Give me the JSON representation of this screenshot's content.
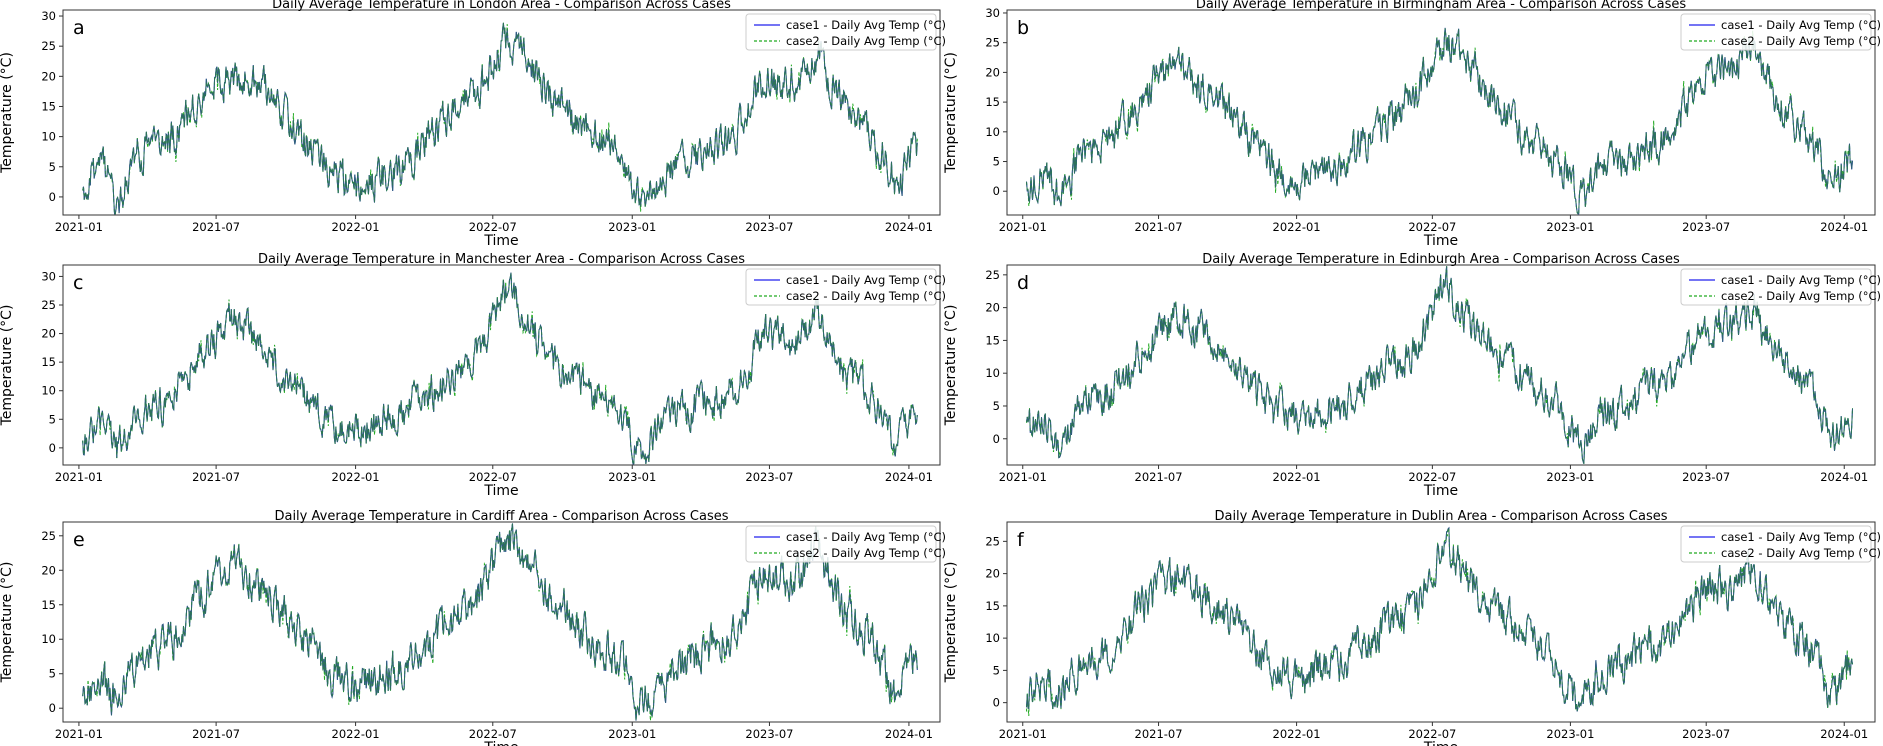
{
  "figure": {
    "colors": {
      "case1": "#2222ee",
      "case2": "#22aa22",
      "overlap": "#2f6b5e",
      "axes": "#333333"
    },
    "legend_case1": "case1 - Daily Avg Temp (°C)",
    "legend_case2": "case2 - Daily Avg Temp (°C)",
    "xlabel": "Time",
    "ylabel": "Temperature (°C)"
  },
  "chart_data": [
    {
      "type": "line",
      "letter": "a",
      "city": "London",
      "title": "Daily Average Temperature in London Area - Comparison Across Cases",
      "xlabel": "Time",
      "ylabel": "Temperature (°C)",
      "xticks": [
        "2021-01",
        "2021-07",
        "2022-01",
        "2022-07",
        "2023-01",
        "2023-07",
        "2024-01"
      ],
      "yticks": [
        0,
        5,
        10,
        15,
        20,
        25,
        30
      ],
      "ylim": [
        -3,
        31
      ],
      "xlim_days": [
        -26,
        1131
      ],
      "date_range": [
        "2021-01-06",
        "2024-01-13"
      ],
      "series": [
        {
          "name": "case1 - Daily Avg Temp (°C)"
        },
        {
          "name": "case2 - Daily Avg Temp (°C)"
        }
      ],
      "anchors": [
        [
          0,
          1
        ],
        [
          25,
          6
        ],
        [
          45,
          -2
        ],
        [
          70,
          7
        ],
        [
          110,
          9
        ],
        [
          170,
          19
        ],
        [
          210,
          20
        ],
        [
          245,
          17
        ],
        [
          280,
          11
        ],
        [
          330,
          4
        ],
        [
          365,
          2
        ],
        [
          420,
          5
        ],
        [
          470,
          12
        ],
        [
          520,
          17
        ],
        [
          560,
          26
        ],
        [
          585,
          23
        ],
        [
          620,
          16
        ],
        [
          660,
          12
        ],
        [
          710,
          7
        ],
        [
          735,
          -1
        ],
        [
          760,
          3
        ],
        [
          800,
          6
        ],
        [
          860,
          10
        ],
        [
          900,
          20
        ],
        [
          940,
          19
        ],
        [
          970,
          24
        ],
        [
          1000,
          16
        ],
        [
          1040,
          10
        ],
        [
          1075,
          2
        ],
        [
          1095,
          8
        ]
      ],
      "noise": 2.3,
      "seed": 11
    },
    {
      "type": "line",
      "letter": "b",
      "city": "Birmingham",
      "title": "Daily Average Temperature in Birmingham Area - Comparison Across Cases",
      "xlabel": "Time",
      "ylabel": "Temperature (°C)",
      "xticks": [
        "2021-01",
        "2021-07",
        "2022-01",
        "2022-07",
        "2023-01",
        "2023-07",
        "2024-01"
      ],
      "yticks": [
        0,
        5,
        10,
        15,
        20,
        25,
        30
      ],
      "ylim": [
        -4,
        30.5
      ],
      "xlim_days": [
        -26,
        1131
      ],
      "date_range": [
        "2021-01-06",
        "2024-01-13"
      ],
      "series": [
        {
          "name": "case1 - Daily Avg Temp (°C)"
        },
        {
          "name": "case2 - Daily Avg Temp (°C)"
        }
      ],
      "anchors": [
        [
          0,
          1
        ],
        [
          25,
          4
        ],
        [
          45,
          -2
        ],
        [
          70,
          6
        ],
        [
          110,
          8
        ],
        [
          170,
          18
        ],
        [
          200,
          21
        ],
        [
          245,
          16
        ],
        [
          280,
          12
        ],
        [
          330,
          4
        ],
        [
          365,
          2
        ],
        [
          420,
          5
        ],
        [
          470,
          11
        ],
        [
          520,
          16
        ],
        [
          560,
          26
        ],
        [
          585,
          22
        ],
        [
          620,
          16
        ],
        [
          660,
          10
        ],
        [
          710,
          5
        ],
        [
          735,
          -1
        ],
        [
          760,
          3
        ],
        [
          800,
          6
        ],
        [
          860,
          9
        ],
        [
          900,
          19
        ],
        [
          940,
          20
        ],
        [
          970,
          26
        ],
        [
          1000,
          15
        ],
        [
          1040,
          9
        ],
        [
          1075,
          1
        ],
        [
          1095,
          5
        ]
      ],
      "noise": 2.3,
      "seed": 22
    },
    {
      "type": "line",
      "letter": "c",
      "city": "Manchester",
      "title": "Daily Average Temperature in Manchester Area - Comparison Across Cases",
      "xlabel": "Time",
      "ylabel": "Temperature (°C)",
      "xticks": [
        "2021-01",
        "2021-07",
        "2022-01",
        "2022-07",
        "2023-01",
        "2023-07",
        "2024-01"
      ],
      "yticks": [
        0,
        5,
        10,
        15,
        20,
        25,
        30
      ],
      "ylim": [
        -3,
        32
      ],
      "xlim_days": [
        -26,
        1131
      ],
      "date_range": [
        "2021-01-06",
        "2024-01-13"
      ],
      "series": [
        {
          "name": "case1 - Daily Avg Temp (°C)"
        },
        {
          "name": "case2 - Daily Avg Temp (°C)"
        }
      ],
      "anchors": [
        [
          0,
          1
        ],
        [
          25,
          4
        ],
        [
          45,
          -1
        ],
        [
          70,
          6
        ],
        [
          110,
          8
        ],
        [
          170,
          18
        ],
        [
          200,
          23
        ],
        [
          245,
          16
        ],
        [
          280,
          11
        ],
        [
          330,
          4
        ],
        [
          365,
          3
        ],
        [
          420,
          6
        ],
        [
          470,
          11
        ],
        [
          520,
          16
        ],
        [
          560,
          28
        ],
        [
          585,
          23
        ],
        [
          620,
          15
        ],
        [
          660,
          11
        ],
        [
          710,
          6
        ],
        [
          735,
          -2
        ],
        [
          760,
          4
        ],
        [
          800,
          7
        ],
        [
          860,
          10
        ],
        [
          900,
          20
        ],
        [
          940,
          18
        ],
        [
          970,
          24
        ],
        [
          1000,
          14
        ],
        [
          1040,
          9
        ],
        [
          1075,
          0
        ],
        [
          1095,
          6
        ]
      ],
      "noise": 2.3,
      "seed": 33
    },
    {
      "type": "line",
      "letter": "d",
      "city": "Edinburgh",
      "title": "Daily Average Temperature in Edinburgh Area - Comparison Across Cases",
      "xlabel": "Time",
      "ylabel": "Temperature (°C)",
      "xticks": [
        "2021-01",
        "2021-07",
        "2022-01",
        "2022-07",
        "2023-01",
        "2023-07",
        "2024-01"
      ],
      "yticks": [
        0,
        5,
        10,
        15,
        20,
        25
      ],
      "ylim": [
        -4,
        26.5
      ],
      "xlim_days": [
        -26,
        1131
      ],
      "date_range": [
        "2021-01-06",
        "2024-01-13"
      ],
      "series": [
        {
          "name": "case1 - Daily Avg Temp (°C)"
        },
        {
          "name": "case2 - Daily Avg Temp (°C)"
        }
      ],
      "anchors": [
        [
          0,
          1
        ],
        [
          25,
          3
        ],
        [
          45,
          -2
        ],
        [
          70,
          5
        ],
        [
          110,
          7
        ],
        [
          170,
          15
        ],
        [
          200,
          19
        ],
        [
          245,
          15
        ],
        [
          280,
          11
        ],
        [
          330,
          4
        ],
        [
          365,
          3
        ],
        [
          420,
          5
        ],
        [
          470,
          10
        ],
        [
          520,
          14
        ],
        [
          560,
          24
        ],
        [
          585,
          18
        ],
        [
          620,
          14
        ],
        [
          660,
          10
        ],
        [
          710,
          5
        ],
        [
          735,
          -1
        ],
        [
          760,
          3
        ],
        [
          800,
          6
        ],
        [
          860,
          9
        ],
        [
          900,
          17
        ],
        [
          940,
          17
        ],
        [
          970,
          20
        ],
        [
          1000,
          12
        ],
        [
          1040,
          8
        ],
        [
          1075,
          0
        ],
        [
          1095,
          3
        ]
      ],
      "noise": 2.1,
      "seed": 44
    },
    {
      "type": "line",
      "letter": "e",
      "city": "Cardiff",
      "title": "Daily Average Temperature in Cardiff Area - Comparison Across Cases",
      "xlabel": "Time",
      "ylabel": "Temperature (°C)",
      "xticks": [
        "2021-01",
        "2021-07",
        "2022-01",
        "2022-07",
        "2023-01",
        "2023-07",
        "2024-01"
      ],
      "yticks": [
        0,
        5,
        10,
        15,
        20,
        25
      ],
      "ylim": [
        -2,
        27
      ],
      "xlim_days": [
        -26,
        1131
      ],
      "date_range": [
        "2021-01-06",
        "2024-01-13"
      ],
      "series": [
        {
          "name": "case1 - Daily Avg Temp (°C)"
        },
        {
          "name": "case2 - Daily Avg Temp (°C)"
        }
      ],
      "anchors": [
        [
          0,
          2
        ],
        [
          25,
          5
        ],
        [
          45,
          0
        ],
        [
          70,
          7
        ],
        [
          110,
          9
        ],
        [
          170,
          18
        ],
        [
          200,
          22
        ],
        [
          245,
          16
        ],
        [
          280,
          12
        ],
        [
          330,
          5
        ],
        [
          365,
          3
        ],
        [
          420,
          6
        ],
        [
          470,
          11
        ],
        [
          520,
          16
        ],
        [
          560,
          25
        ],
        [
          585,
          21
        ],
        [
          620,
          16
        ],
        [
          660,
          11
        ],
        [
          710,
          6
        ],
        [
          735,
          0
        ],
        [
          760,
          4
        ],
        [
          800,
          7
        ],
        [
          860,
          11
        ],
        [
          900,
          19
        ],
        [
          940,
          19
        ],
        [
          970,
          23
        ],
        [
          1000,
          15
        ],
        [
          1040,
          10
        ],
        [
          1075,
          1
        ],
        [
          1095,
          7
        ]
      ],
      "noise": 2.2,
      "seed": 55
    },
    {
      "type": "line",
      "letter": "f",
      "city": "Dublin",
      "title": "Daily Average Temperature in Dublin Area - Comparison Across Cases",
      "xlabel": "Time",
      "ylabel": "Temperature (°C)",
      "xticks": [
        "2021-01",
        "2021-07",
        "2022-01",
        "2022-07",
        "2023-01",
        "2023-07",
        "2024-01"
      ],
      "yticks": [
        0,
        5,
        10,
        15,
        20,
        25
      ],
      "ylim": [
        -3,
        28
      ],
      "xlim_days": [
        -26,
        1131
      ],
      "date_range": [
        "2021-01-06",
        "2024-01-13"
      ],
      "series": [
        {
          "name": "case1 - Daily Avg Temp (°C)"
        },
        {
          "name": "case2 - Daily Avg Temp (°C)"
        }
      ],
      "anchors": [
        [
          0,
          1
        ],
        [
          25,
          4
        ],
        [
          45,
          1
        ],
        [
          70,
          6
        ],
        [
          110,
          8
        ],
        [
          170,
          17
        ],
        [
          200,
          20
        ],
        [
          245,
          16
        ],
        [
          280,
          12
        ],
        [
          330,
          5
        ],
        [
          365,
          4
        ],
        [
          420,
          6
        ],
        [
          470,
          11
        ],
        [
          520,
          15
        ],
        [
          560,
          25
        ],
        [
          585,
          20
        ],
        [
          620,
          15
        ],
        [
          660,
          11
        ],
        [
          710,
          5
        ],
        [
          735,
          -1
        ],
        [
          760,
          4
        ],
        [
          800,
          7
        ],
        [
          860,
          10
        ],
        [
          900,
          18
        ],
        [
          940,
          17
        ],
        [
          970,
          21
        ],
        [
          1000,
          13
        ],
        [
          1040,
          9
        ],
        [
          1075,
          1
        ],
        [
          1095,
          6
        ]
      ],
      "noise": 2.2,
      "seed": 66
    }
  ]
}
